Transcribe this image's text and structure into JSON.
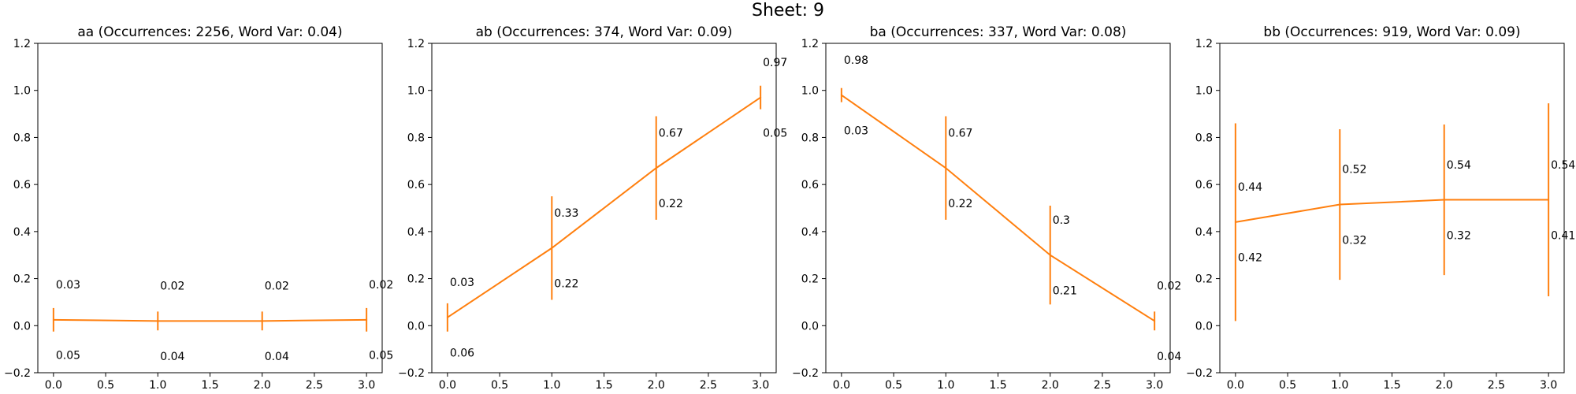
{
  "page_title": "Sheet: 9",
  "chart_data": [
    {
      "type": "line",
      "title": "aa (Occurrences: 2256, Word Var: 0.04)",
      "x": [
        0,
        1,
        2,
        3
      ],
      "values": [
        0.025,
        0.02,
        0.02,
        0.025
      ],
      "err_upper": [
        0.05,
        0.04,
        0.04,
        0.05
      ],
      "err_lower": [
        0.05,
        0.04,
        0.04,
        0.05
      ],
      "top_labels": [
        "0.03",
        "0.02",
        "0.02",
        "0.02"
      ],
      "bottom_labels": [
        "0.05",
        "0.04",
        "0.04",
        "0.05"
      ],
      "xlim": [
        -0.15,
        3.15
      ],
      "ylim": [
        -0.2,
        1.2
      ],
      "xticks": [
        "0.0",
        "0.5",
        "1.0",
        "1.5",
        "2.0",
        "2.5",
        "3.0"
      ],
      "yticks": [
        "−0.2",
        "0.0",
        "0.2",
        "0.4",
        "0.6",
        "0.8",
        "1.0",
        "1.2"
      ],
      "color": "#ff7f0e"
    },
    {
      "type": "line",
      "title": "ab (Occurrences: 374, Word Var: 0.09)",
      "x": [
        0,
        1,
        2,
        3
      ],
      "values": [
        0.035,
        0.33,
        0.67,
        0.97
      ],
      "err_upper": [
        0.06,
        0.22,
        0.22,
        0.05
      ],
      "err_lower": [
        0.06,
        0.22,
        0.22,
        0.05
      ],
      "top_labels": [
        "0.03",
        "0.33",
        "0.67",
        "0.97"
      ],
      "bottom_labels": [
        "0.06",
        "0.22",
        "0.22",
        "0.05"
      ],
      "xlim": [
        -0.15,
        3.15
      ],
      "ylim": [
        -0.2,
        1.2
      ],
      "xticks": [
        "0.0",
        "0.5",
        "1.0",
        "1.5",
        "2.0",
        "2.5",
        "3.0"
      ],
      "yticks": [
        "−0.2",
        "0.0",
        "0.2",
        "0.4",
        "0.6",
        "0.8",
        "1.0",
        "1.2"
      ],
      "color": "#ff7f0e"
    },
    {
      "type": "line",
      "title": "ba (Occurrences: 337, Word Var: 0.08)",
      "x": [
        0,
        1,
        2,
        3
      ],
      "values": [
        0.98,
        0.67,
        0.3,
        0.02
      ],
      "err_upper": [
        0.03,
        0.22,
        0.21,
        0.04
      ],
      "err_lower": [
        0.03,
        0.22,
        0.21,
        0.04
      ],
      "top_labels": [
        "0.98",
        "0.67",
        "0.3",
        "0.02"
      ],
      "bottom_labels": [
        "0.03",
        "0.22",
        "0.21",
        "0.04"
      ],
      "xlim": [
        -0.15,
        3.15
      ],
      "ylim": [
        -0.2,
        1.2
      ],
      "xticks": [
        "0.0",
        "0.5",
        "1.0",
        "1.5",
        "2.0",
        "2.5",
        "3.0"
      ],
      "yticks": [
        "−0.2",
        "0.0",
        "0.2",
        "0.4",
        "0.6",
        "0.8",
        "1.0",
        "1.2"
      ],
      "color": "#ff7f0e"
    },
    {
      "type": "line",
      "title": "bb (Occurrences: 919, Word Var: 0.09)",
      "x": [
        0,
        1,
        2,
        3
      ],
      "values": [
        0.44,
        0.515,
        0.535,
        0.535
      ],
      "err_upper": [
        0.42,
        0.32,
        0.32,
        0.41
      ],
      "err_lower": [
        0.42,
        0.32,
        0.32,
        0.41
      ],
      "top_labels": [
        "0.44",
        "0.52",
        "0.54",
        "0.54"
      ],
      "bottom_labels": [
        "0.42",
        "0.32",
        "0.32",
        "0.41"
      ],
      "xlim": [
        -0.15,
        3.15
      ],
      "ylim": [
        -0.2,
        1.2
      ],
      "xticks": [
        "0.0",
        "0.5",
        "1.0",
        "1.5",
        "2.0",
        "2.5",
        "3.0"
      ],
      "yticks": [
        "−0.2",
        "0.0",
        "0.2",
        "0.4",
        "0.6",
        "0.8",
        "1.0",
        "1.2"
      ],
      "color": "#ff7f0e"
    }
  ]
}
